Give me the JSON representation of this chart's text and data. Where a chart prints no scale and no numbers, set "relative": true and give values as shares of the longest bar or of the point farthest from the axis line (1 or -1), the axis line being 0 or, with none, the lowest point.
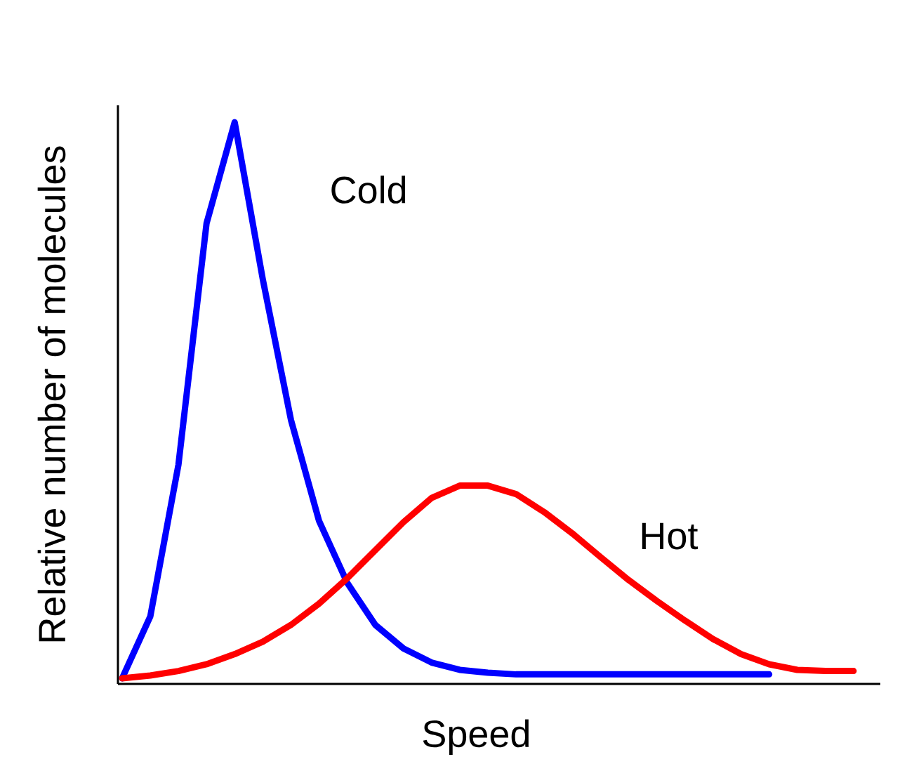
{
  "chart_data": {
    "type": "line",
    "relative": true,
    "xlabel": "Speed",
    "ylabel": "Relative number of molecules",
    "categories": [
      null,
      null,
      null,
      null,
      null,
      null,
      null,
      null,
      null,
      null,
      null,
      null,
      null,
      null,
      null,
      null,
      null,
      null,
      null,
      null,
      null,
      null,
      null,
      null,
      null,
      null,
      null
    ],
    "series": [
      {
        "name": "Cold",
        "color": "#0000ff",
        "values": [
          0.01,
          0.12,
          0.39,
          0.82,
          1,
          0.72,
          0.47,
          0.29,
          0.18,
          0.105,
          0.063,
          0.038,
          0.025,
          0.02,
          0.017,
          0.017,
          0.017,
          0.017,
          0.017,
          0.017,
          0.017,
          0.017,
          0.017,
          0.017,
          null,
          null,
          null
        ]
      },
      {
        "name": "Hot",
        "color": "#ff0000",
        "values": [
          0.01,
          0.015,
          0.023,
          0.035,
          0.053,
          0.075,
          0.105,
          0.143,
          0.188,
          0.238,
          0.288,
          0.331,
          0.353,
          0.353,
          0.338,
          0.306,
          0.268,
          0.226,
          0.185,
          0.148,
          0.113,
          0.08,
          0.053,
          0.035,
          0.025,
          0.023,
          0.023
        ]
      }
    ],
    "marker": "none",
    "line_style": "solid"
  }
}
